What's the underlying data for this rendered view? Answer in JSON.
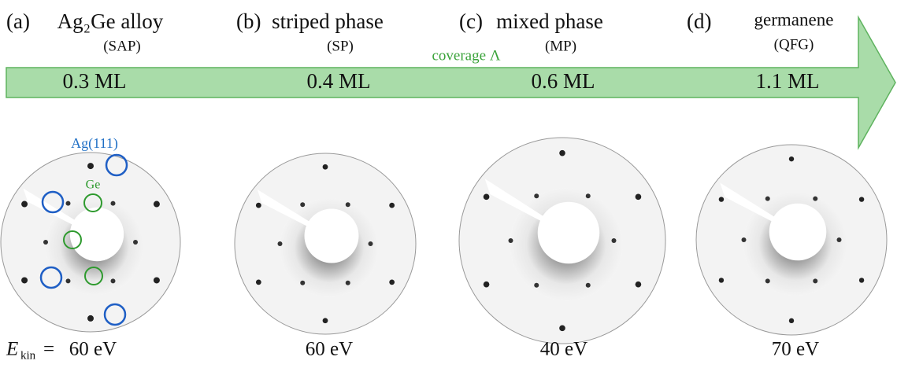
{
  "arrow_label": "coverage Λ",
  "panels": [
    {
      "letter": "(a)",
      "title": "Ag₂Ge alloy",
      "abbreviation": "(SAP)",
      "coverage": "0.3 ML",
      "energy": "60 eV"
    },
    {
      "letter": "(b)",
      "title": "striped phase",
      "abbreviation": "(SP)",
      "coverage": "0.4 ML",
      "energy": "60 eV"
    },
    {
      "letter": "(c)",
      "title": "mixed phase",
      "abbreviation": "(MP)",
      "coverage": "0.6 ML",
      "energy": "40 eV"
    },
    {
      "letter": "(d)",
      "title": "germanene",
      "abbreviation": "(QFG)",
      "coverage": "1.1 ML",
      "energy": "70 eV"
    }
  ],
  "annotations": {
    "substrate": "Ag(111)",
    "overlayer": "Ge"
  },
  "energy_label": {
    "symbol": "E",
    "subscript": "kin",
    "equals": "="
  }
}
